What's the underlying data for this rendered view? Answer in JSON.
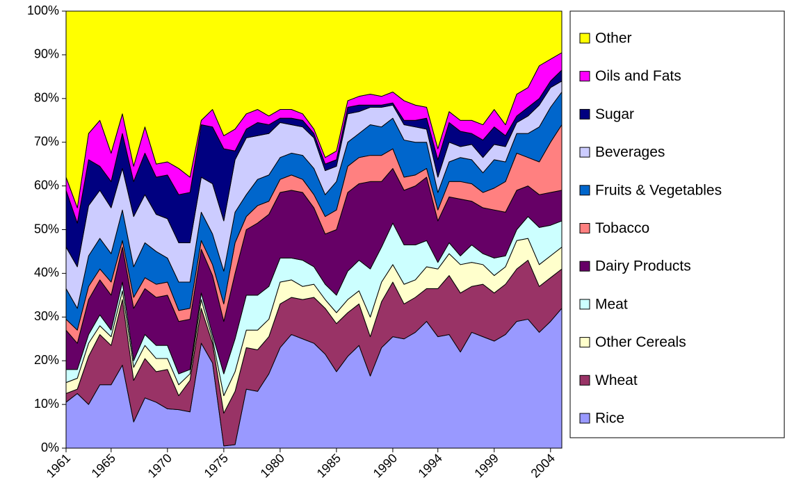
{
  "chart_data": {
    "type": "stacked-area-100",
    "categories": [
      "1961",
      null,
      null,
      null,
      "1965",
      null,
      null,
      null,
      null,
      "1970",
      null,
      null,
      null,
      null,
      "1975",
      null,
      null,
      null,
      null,
      "1980",
      null,
      null,
      null,
      null,
      "1985",
      null,
      null,
      null,
      null,
      "1990",
      null,
      null,
      null,
      "1994",
      null,
      null,
      null,
      null,
      "1999",
      null,
      null,
      null,
      null,
      "2004",
      null
    ],
    "ylim": [
      0,
      100
    ],
    "yticks": [
      {
        "value": 0,
        "label": "0%"
      },
      {
        "value": 10,
        "label": "10%"
      },
      {
        "value": 20,
        "label": "20%"
      },
      {
        "value": 30,
        "label": "30%"
      },
      {
        "value": 40,
        "label": "40%"
      },
      {
        "value": 50,
        "label": "50%"
      },
      {
        "value": 60,
        "label": "60%"
      },
      {
        "value": 70,
        "label": "70%"
      },
      {
        "value": 80,
        "label": "80%"
      },
      {
        "value": 90,
        "label": "90%"
      },
      {
        "value": 100,
        "label": "100%"
      }
    ],
    "series": [
      {
        "name": "Rice",
        "color": "#9999ff",
        "values": [
          10.5,
          12.5,
          10,
          14.5,
          14.5,
          19,
          6,
          11.5,
          10.5,
          9,
          8.8,
          8.3,
          24,
          19.5,
          0.5,
          0.8,
          13.5,
          13,
          17,
          23,
          26,
          25,
          24,
          21.5,
          17.5,
          21,
          23.5,
          16.5,
          23,
          25.5,
          25,
          26.5,
          29,
          25.5,
          26,
          22,
          26.5,
          25.5,
          24.5,
          26,
          29,
          29.5,
          26.5,
          29,
          32
        ]
      },
      {
        "name": "Wheat",
        "color": "#993366",
        "values": [
          2,
          1,
          11,
          11.5,
          9,
          15,
          9.5,
          9,
          7,
          9,
          3.2,
          7.2,
          8,
          4.5,
          7.5,
          12.2,
          9.5,
          9.5,
          8.5,
          10,
          8.5,
          9,
          10.5,
          10.5,
          11,
          10,
          9.5,
          9,
          10.5,
          12.5,
          8,
          8,
          7.5,
          11,
          13.5,
          13.5,
          10.5,
          12,
          11,
          11.5,
          12,
          13.5,
          10.5,
          10,
          9
        ]
      },
      {
        "name": "Other Cereals",
        "color": "#ffffcc",
        "values": [
          2.5,
          2.5,
          3,
          2,
          2,
          2,
          3,
          3,
          3,
          2.5,
          2.5,
          1.5,
          2,
          1,
          4,
          4.5,
          4,
          4.5,
          4,
          5,
          4,
          3,
          3,
          2,
          2.5,
          3,
          3,
          4.5,
          4.5,
          4,
          4.5,
          4,
          5,
          4.5,
          5,
          6.5,
          5.5,
          4.5,
          4,
          4,
          6.5,
          5,
          5,
          5,
          5
        ]
      },
      {
        "name": "Meat",
        "color": "#ccffff",
        "values": [
          3,
          2,
          2,
          2.5,
          1.5,
          2,
          1.5,
          2.5,
          3,
          3,
          2.5,
          1,
          1.5,
          1,
          5,
          7.5,
          8,
          8,
          7.5,
          5.5,
          5,
          6,
          4,
          3.5,
          4,
          6.5,
          7,
          11,
          8,
          9.5,
          9,
          8,
          6,
          1.5,
          2.5,
          2,
          4,
          2.5,
          4,
          2.5,
          2.5,
          5,
          8.5,
          7,
          6
        ]
      },
      {
        "name": "Dairy Products",
        "color": "#660066",
        "values": [
          9,
          6,
          8,
          8,
          8,
          8,
          12,
          10.5,
          11,
          11.5,
          12,
          11.5,
          10,
          13.5,
          12,
          15,
          15,
          16.5,
          16.5,
          15,
          15.5,
          15.5,
          13.5,
          11.5,
          15,
          18,
          17.5,
          20,
          15,
          12.5,
          12.5,
          13.5,
          14.5,
          9.5,
          10.5,
          13,
          10,
          10.5,
          11,
          10,
          9,
          7,
          7.5,
          7.5,
          7
        ]
      },
      {
        "name": "Tobacco",
        "color": "#ff8080",
        "values": [
          2.5,
          3,
          3,
          2.5,
          3,
          1.5,
          2.5,
          2.5,
          3,
          3,
          2.5,
          2.5,
          2,
          2.5,
          4,
          7,
          3,
          4,
          3,
          3,
          3.5,
          3,
          3,
          4,
          4.5,
          6,
          6,
          6,
          6,
          4.5,
          3,
          2.5,
          2,
          2.5,
          3.5,
          4,
          4,
          3.5,
          5,
          7,
          8.5,
          6.5,
          7.5,
          11.5,
          15
        ]
      },
      {
        "name": "Fruits & Vegetables",
        "color": "#0066cc",
        "values": [
          7,
          5,
          7,
          7,
          6.5,
          7,
          7,
          8,
          7.5,
          5.5,
          6.5,
          6,
          6.5,
          7,
          7.5,
          7,
          5,
          6,
          6,
          5,
          5,
          5.5,
          6,
          5,
          6.5,
          5.5,
          5.5,
          7,
          6.5,
          7,
          8.5,
          7.5,
          6,
          4,
          4.5,
          5.5,
          5.5,
          4.5,
          6.5,
          4.5,
          4.5,
          5.5,
          8,
          8,
          7.5
        ]
      },
      {
        "name": "Beverages",
        "color": "#ccccff",
        "values": [
          9.5,
          9.5,
          11.5,
          11,
          10.5,
          9.5,
          11.5,
          11,
          8.5,
          9,
          9,
          9,
          8,
          11.5,
          11.5,
          12,
          13,
          10,
          9.5,
          8,
          6.5,
          6.5,
          7,
          5.5,
          3.5,
          6.5,
          5,
          4,
          4.5,
          3,
          3.5,
          3.5,
          3,
          3.5,
          4.5,
          2.5,
          3.5,
          3.5,
          3.5,
          3.5,
          2.5,
          4,
          5,
          4.5,
          2.5
        ]
      },
      {
        "name": "Sugar",
        "color": "#000080",
        "values": [
          13,
          10,
          10.5,
          5.5,
          6,
          8,
          8,
          9.5,
          8.5,
          10,
          11,
          11.5,
          12,
          13,
          16.5,
          2,
          2,
          3,
          2,
          1,
          1.5,
          1.5,
          1,
          1.5,
          1.5,
          1.5,
          1.5,
          0.5,
          0.5,
          0.5,
          1,
          1.5,
          2.5,
          4,
          4.5,
          3.5,
          2.5,
          4,
          4,
          2.5,
          1.5,
          2,
          1.5,
          1.5,
          2.5
        ]
      },
      {
        "name": "Oils and Fats",
        "color": "#ff00ff",
        "values": [
          3,
          3.5,
          6,
          10.5,
          6.5,
          4.5,
          3.5,
          6,
          3,
          3,
          6,
          3.5,
          1,
          4,
          3,
          5,
          3.5,
          3,
          2,
          2,
          2,
          1.5,
          1,
          1.5,
          2,
          1.5,
          2,
          2.5,
          2,
          2.5,
          4.5,
          3.5,
          2.5,
          2.5,
          2.5,
          2.5,
          3,
          3.5,
          4,
          2.5,
          5,
          4.5,
          7.5,
          5,
          4
        ]
      },
      {
        "name": "Other",
        "color": "#ffff00",
        "values": [
          38,
          45,
          28,
          25,
          32.5,
          23.5,
          35.5,
          26.5,
          35,
          34.5,
          36,
          38,
          25,
          22.5,
          28.5,
          27,
          23.5,
          22.5,
          24,
          22.5,
          22.5,
          23.5,
          27,
          33.5,
          32,
          20.5,
          19.5,
          19,
          19.5,
          18.5,
          20.5,
          21.5,
          22,
          31.5,
          23,
          25,
          25,
          26,
          22.5,
          26,
          19,
          17.5,
          12.5,
          11,
          9.5
        ]
      }
    ]
  }
}
